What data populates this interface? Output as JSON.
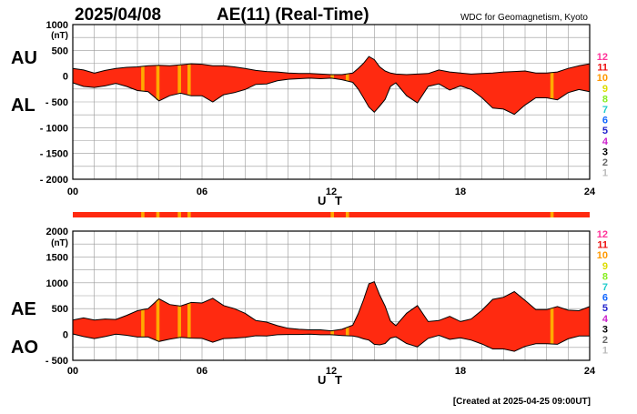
{
  "header": {
    "date": "2025/04/08",
    "title": "AE(11) (Real-Time)",
    "source": "WDC for Geomagnetism, Kyoto"
  },
  "footer": {
    "created": "[Created at 2025-04-25 09:00UT]"
  },
  "legend": {
    "items": [
      {
        "label": "12",
        "color": "#ff3399"
      },
      {
        "label": "11",
        "color": "#ee1111"
      },
      {
        "label": "10",
        "color": "#ff9900"
      },
      {
        "label": "9",
        "color": "#dddd00"
      },
      {
        "label": "8",
        "color": "#88ee22"
      },
      {
        "label": "7",
        "color": "#22cccc"
      },
      {
        "label": "6",
        "color": "#1166ff"
      },
      {
        "label": "5",
        "color": "#2222cc"
      },
      {
        "label": "4",
        "color": "#cc22cc"
      },
      {
        "label": "3",
        "color": "#000000"
      },
      {
        "label": "2",
        "color": "#666666"
      },
      {
        "label": "1",
        "color": "#bbbbbb"
      }
    ]
  },
  "colors": {
    "fill": "#ff2a10",
    "stripe": "#ffaa00",
    "grid": "#999999",
    "outline": "#000000"
  },
  "chart_data": [
    {
      "type": "area",
      "name": "AU/AL",
      "left_labels": [
        "AU",
        "AL"
      ],
      "unit": "(nT)",
      "xlabel": "U T",
      "x_ticks": [
        "00",
        "06",
        "12",
        "18",
        "24"
      ],
      "xlim": [
        0,
        24
      ],
      "ylim": [
        -2000,
        1000
      ],
      "y_ticks": [
        {
          "value": 1000,
          "label": "1000"
        },
        {
          "value": 500,
          "label": "500"
        },
        {
          "value": 0,
          "label": "0"
        },
        {
          "value": -500,
          "label": "- 500"
        },
        {
          "value": -1000,
          "label": "- 1000"
        },
        {
          "value": -1500,
          "label": "- 1500"
        },
        {
          "value": -2000,
          "label": "- 2000"
        }
      ],
      "series": [
        {
          "name": "AU",
          "x": [
            0,
            0.5,
            1,
            1.5,
            2,
            2.5,
            3,
            3.5,
            4,
            4.5,
            5,
            5.5,
            6,
            6.5,
            7,
            7.5,
            8,
            8.5,
            9,
            9.5,
            10,
            10.5,
            11,
            11.5,
            12,
            12.5,
            13,
            13.25,
            13.5,
            13.75,
            14,
            14.25,
            14.5,
            14.75,
            15,
            15.5,
            16,
            16.5,
            17,
            17.5,
            18,
            18.5,
            19,
            19.5,
            20,
            20.5,
            21,
            21.5,
            22,
            22.5,
            23,
            23.5,
            24
          ],
          "values": [
            150,
            120,
            60,
            110,
            150,
            170,
            180,
            200,
            210,
            200,
            220,
            240,
            230,
            200,
            200,
            180,
            150,
            110,
            90,
            80,
            60,
            50,
            50,
            40,
            30,
            30,
            60,
            150,
            250,
            380,
            320,
            180,
            100,
            60,
            40,
            30,
            40,
            50,
            120,
            80,
            60,
            40,
            50,
            60,
            80,
            90,
            100,
            60,
            60,
            80,
            150,
            200,
            240
          ]
        },
        {
          "name": "AL",
          "x": [
            0,
            0.5,
            1,
            1.5,
            2,
            2.5,
            3,
            3.5,
            4,
            4.5,
            5,
            5.5,
            6,
            6.5,
            7,
            7.5,
            8,
            8.5,
            9,
            9.5,
            10,
            10.5,
            11,
            11.5,
            12,
            12.5,
            13,
            13.25,
            13.5,
            13.75,
            14,
            14.25,
            14.5,
            14.75,
            15,
            15.5,
            16,
            16.5,
            17,
            17.5,
            18,
            18.5,
            19,
            19.5,
            20,
            20.5,
            21,
            21.5,
            22,
            22.5,
            23,
            23.5,
            24
          ],
          "values": [
            -130,
            -200,
            -220,
            -190,
            -140,
            -200,
            -280,
            -300,
            -480,
            -380,
            -330,
            -380,
            -380,
            -500,
            -360,
            -320,
            -260,
            -160,
            -150,
            -90,
            -60,
            -50,
            -40,
            -50,
            -40,
            -70,
            -120,
            -250,
            -420,
            -600,
            -700,
            -580,
            -450,
            -200,
            -130,
            -380,
            -520,
            -200,
            -150,
            -270,
            -190,
            -260,
            -420,
            -620,
            -640,
            -740,
            -560,
            -420,
            -420,
            -460,
            -320,
            -260,
            -300
          ]
        }
      ],
      "stripes_ut": [
        3.25,
        3.95,
        4.95,
        5.4,
        12.05,
        12.75,
        22.25
      ]
    },
    {
      "type": "area",
      "name": "AE/AO",
      "left_labels": [
        "AE",
        "AO"
      ],
      "unit": "(nT)",
      "xlabel": "U T",
      "x_ticks": [
        "00",
        "06",
        "12",
        "18",
        "24"
      ],
      "xlim": [
        0,
        24
      ],
      "ylim": [
        -500,
        2000
      ],
      "y_ticks": [
        {
          "value": 2000,
          "label": "2000"
        },
        {
          "value": 1500,
          "label": "1500"
        },
        {
          "value": 1000,
          "label": "1000"
        },
        {
          "value": 500,
          "label": "500"
        },
        {
          "value": 0,
          "label": "0"
        },
        {
          "value": -500,
          "label": "- 500"
        }
      ],
      "series": [
        {
          "name": "AE",
          "x": [
            0,
            0.5,
            1,
            1.5,
            2,
            2.5,
            3,
            3.5,
            4,
            4.5,
            5,
            5.5,
            6,
            6.5,
            7,
            7.5,
            8,
            8.5,
            9,
            9.5,
            10,
            10.5,
            11,
            11.5,
            12,
            12.5,
            13,
            13.25,
            13.5,
            13.75,
            14,
            14.25,
            14.5,
            14.75,
            15,
            15.5,
            16,
            16.5,
            17,
            17.5,
            18,
            18.5,
            19,
            19.5,
            20,
            20.5,
            21,
            21.5,
            22,
            22.5,
            23,
            23.5,
            24
          ],
          "values": [
            280,
            320,
            280,
            300,
            290,
            370,
            460,
            500,
            690,
            580,
            550,
            620,
            610,
            700,
            560,
            500,
            410,
            270,
            240,
            170,
            120,
            100,
            90,
            90,
            70,
            100,
            180,
            400,
            670,
            980,
            1020,
            760,
            550,
            260,
            170,
            410,
            560,
            250,
            270,
            350,
            250,
            300,
            470,
            680,
            720,
            830,
            660,
            480,
            480,
            540,
            470,
            460,
            540
          ]
        },
        {
          "name": "AO",
          "x": [
            0,
            0.5,
            1,
            1.5,
            2,
            2.5,
            3,
            3.5,
            4,
            4.5,
            5,
            5.5,
            6,
            6.5,
            7,
            7.5,
            8,
            8.5,
            9,
            9.5,
            10,
            10.5,
            11,
            11.5,
            12,
            12.5,
            13,
            13.25,
            13.5,
            13.75,
            14,
            14.25,
            14.5,
            14.75,
            15,
            15.5,
            16,
            16.5,
            17,
            17.5,
            18,
            18.5,
            19,
            19.5,
            20,
            20.5,
            21,
            21.5,
            22,
            22.5,
            23,
            23.5,
            24
          ],
          "values": [
            10,
            -40,
            -80,
            -40,
            5,
            -15,
            -50,
            -50,
            -135,
            -90,
            -55,
            -70,
            -75,
            -150,
            -80,
            -70,
            -55,
            -25,
            -30,
            -5,
            0,
            0,
            5,
            -5,
            -5,
            -20,
            -30,
            -50,
            -85,
            -110,
            -190,
            -200,
            -175,
            -70,
            -45,
            -175,
            -240,
            -75,
            -15,
            -95,
            -65,
            -110,
            -185,
            -280,
            -280,
            -325,
            -230,
            -180,
            -180,
            -190,
            -85,
            -30,
            -30
          ]
        }
      ],
      "stripes_ut": [
        3.25,
        3.95,
        4.95,
        5.4,
        12.05,
        12.75,
        22.25
      ]
    }
  ]
}
